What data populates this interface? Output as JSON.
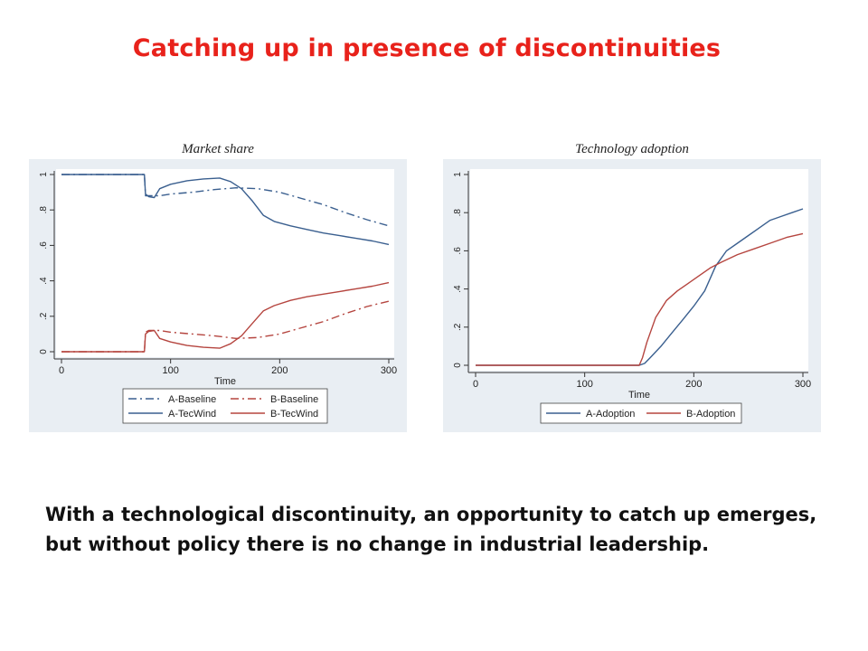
{
  "slide": {
    "title": "Catching up in presence of discontinuities",
    "caption_line1": "With a technological discontinuity, an opportunity to catch up emerges,",
    "caption_line2": "but without policy there is no change in industrial leadership."
  },
  "colors": {
    "title": "#e8221b",
    "panel_bg": "#e9eef3",
    "blue": "#3a5f8f",
    "red": "#b5453f"
  },
  "chart_data": [
    {
      "type": "line",
      "title": "Market share",
      "xlabel": "Time",
      "ylabel": "",
      "xlim": [
        0,
        300
      ],
      "ylim": [
        0,
        1
      ],
      "x_ticks": [
        0,
        100,
        200,
        300
      ],
      "x_tick_labels": [
        "0",
        "100",
        "200",
        "300"
      ],
      "y_ticks": [
        0,
        0.2,
        0.4,
        0.6,
        0.8,
        1
      ],
      "y_tick_labels": [
        "0",
        ".2",
        ".4",
        ".6",
        ".8",
        "1"
      ],
      "grid": false,
      "legend_position": "bottom",
      "series": [
        {
          "name": "A-Baseline",
          "color": "#3a5f8f",
          "dash": "dashdot",
          "x": [
            0,
            76,
            77,
            80,
            90,
            100,
            120,
            140,
            160,
            180,
            200,
            220,
            240,
            260,
            280,
            300
          ],
          "y": [
            1,
            1,
            0.88,
            0.88,
            0.88,
            0.89,
            0.9,
            0.915,
            0.925,
            0.92,
            0.9,
            0.865,
            0.83,
            0.785,
            0.745,
            0.71
          ]
        },
        {
          "name": "B-Baseline",
          "color": "#b5453f",
          "dash": "dashdot",
          "x": [
            0,
            76,
            77,
            80,
            90,
            100,
            120,
            140,
            160,
            180,
            200,
            220,
            240,
            260,
            280,
            300
          ],
          "y": [
            0,
            0,
            0.11,
            0.12,
            0.12,
            0.11,
            0.1,
            0.09,
            0.075,
            0.08,
            0.1,
            0.135,
            0.17,
            0.215,
            0.255,
            0.285
          ]
        },
        {
          "name": "A-TecWind",
          "color": "#3a5f8f",
          "dash": "solid",
          "x": [
            0,
            76,
            77,
            80,
            85,
            90,
            100,
            115,
            130,
            145,
            155,
            165,
            175,
            185,
            195,
            210,
            225,
            240,
            255,
            270,
            285,
            300
          ],
          "y": [
            1,
            1,
            0.89,
            0.875,
            0.87,
            0.92,
            0.945,
            0.965,
            0.975,
            0.98,
            0.96,
            0.92,
            0.85,
            0.77,
            0.735,
            0.71,
            0.69,
            0.67,
            0.655,
            0.64,
            0.625,
            0.605
          ]
        },
        {
          "name": "B-TecWind",
          "color": "#b5453f",
          "dash": "solid",
          "x": [
            0,
            76,
            77,
            80,
            85,
            90,
            100,
            115,
            130,
            145,
            155,
            165,
            175,
            185,
            195,
            210,
            225,
            240,
            255,
            270,
            285,
            300
          ],
          "y": [
            0,
            0,
            0.1,
            0.115,
            0.12,
            0.075,
            0.055,
            0.035,
            0.025,
            0.02,
            0.045,
            0.09,
            0.16,
            0.23,
            0.26,
            0.29,
            0.31,
            0.325,
            0.34,
            0.355,
            0.37,
            0.39
          ]
        }
      ]
    },
    {
      "type": "line",
      "title": "Technology adoption",
      "xlabel": "Time",
      "ylabel": "",
      "xlim": [
        0,
        300
      ],
      "ylim": [
        0,
        1
      ],
      "x_ticks": [
        0,
        100,
        200,
        300
      ],
      "x_tick_labels": [
        "0",
        "100",
        "200",
        "300"
      ],
      "y_ticks": [
        0,
        0.2,
        0.4,
        0.6,
        0.8,
        1
      ],
      "y_tick_labels": [
        "0",
        ".2",
        ".4",
        ".6",
        ".8",
        "1"
      ],
      "grid": false,
      "legend_position": "bottom",
      "series": [
        {
          "name": "A-Adoption",
          "color": "#3a5f8f",
          "dash": "solid",
          "x": [
            0,
            150,
            155,
            160,
            170,
            180,
            190,
            200,
            210,
            220,
            230,
            240,
            250,
            260,
            270,
            280,
            290,
            300
          ],
          "y": [
            0,
            0,
            0.01,
            0.04,
            0.1,
            0.17,
            0.24,
            0.31,
            0.39,
            0.52,
            0.6,
            0.64,
            0.68,
            0.72,
            0.76,
            0.78,
            0.8,
            0.82
          ]
        },
        {
          "name": "B-Adoption",
          "color": "#b5453f",
          "dash": "solid",
          "x": [
            0,
            150,
            153,
            157,
            165,
            175,
            185,
            195,
            205,
            215,
            225,
            240,
            255,
            270,
            285,
            300
          ],
          "y": [
            0,
            0,
            0.04,
            0.12,
            0.25,
            0.34,
            0.39,
            0.43,
            0.47,
            0.51,
            0.54,
            0.58,
            0.61,
            0.64,
            0.67,
            0.69
          ]
        }
      ]
    }
  ]
}
